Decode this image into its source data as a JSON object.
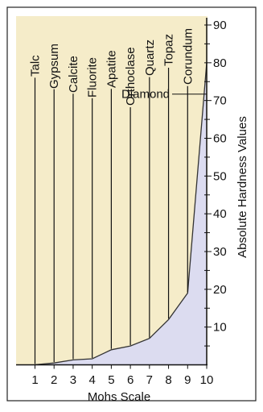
{
  "chart_data": {
    "type": "area",
    "xlabel": "Mohs Scale",
    "ylabel": "Absolute Hardness Values",
    "x": [
      1,
      2,
      3,
      4,
      5,
      6,
      7,
      8,
      9,
      10
    ],
    "x_ticks": [
      "1",
      "2",
      "3",
      "4",
      "5",
      "6",
      "7",
      "8",
      "9",
      "10"
    ],
    "y_ticks": [
      "10",
      "20",
      "30",
      "40",
      "50",
      "60",
      "70",
      "80",
      "90"
    ],
    "xlim": [
      1,
      10
    ],
    "ylim": [
      0,
      90
    ],
    "y_axis_side": "right",
    "grid": false,
    "minerals": [
      {
        "name": "Talc",
        "mohs": 1,
        "value": 0.03
      },
      {
        "name": "Gypsum",
        "mohs": 2,
        "value": 0.5
      },
      {
        "name": "Calcite",
        "mohs": 3,
        "value": 1.3
      },
      {
        "name": "Fluorite",
        "mohs": 4,
        "value": 1.6
      },
      {
        "name": "Apatite",
        "mohs": 5,
        "value": 4
      },
      {
        "name": "Orthoclase",
        "mohs": 6,
        "value": 5
      },
      {
        "name": "Quartz",
        "mohs": 7,
        "value": 7
      },
      {
        "name": "Topaz",
        "mohs": 8,
        "value": 12
      },
      {
        "name": "Corundum",
        "mohs": 9,
        "value": 19
      },
      {
        "name": "Diamond",
        "mohs": 10,
        "value": 80
      }
    ],
    "colors": {
      "fill": "#dcdcf0",
      "line": "#333333",
      "background": "#f5ecc9"
    }
  }
}
